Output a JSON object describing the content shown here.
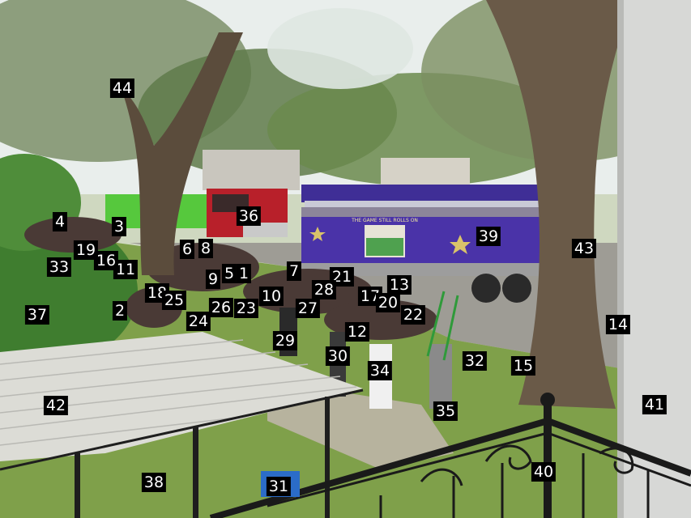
{
  "float_sign": "THE GAME STILL ROLLS ON",
  "labels": [
    "1",
    "2",
    "3",
    "4",
    "5",
    "6",
    "7",
    "8",
    "9",
    "10",
    "11",
    "12",
    "13",
    "14",
    "15",
    "16",
    "17",
    "18",
    "19",
    "20",
    "21",
    "22",
    "23",
    "24",
    "25",
    "26",
    "27",
    "28",
    "29",
    "30",
    "31",
    "32",
    "33",
    "34",
    "35",
    "36",
    "37",
    "38",
    "39",
    "40",
    "41",
    "42",
    "43",
    "44"
  ],
  "colors": {
    "float": "#4a33a8",
    "sky": "#eef2f2",
    "grass": "#7fa04a",
    "street": "#9c9a94",
    "roof": "#dcdcd6",
    "bark": "#5a4a3a"
  }
}
